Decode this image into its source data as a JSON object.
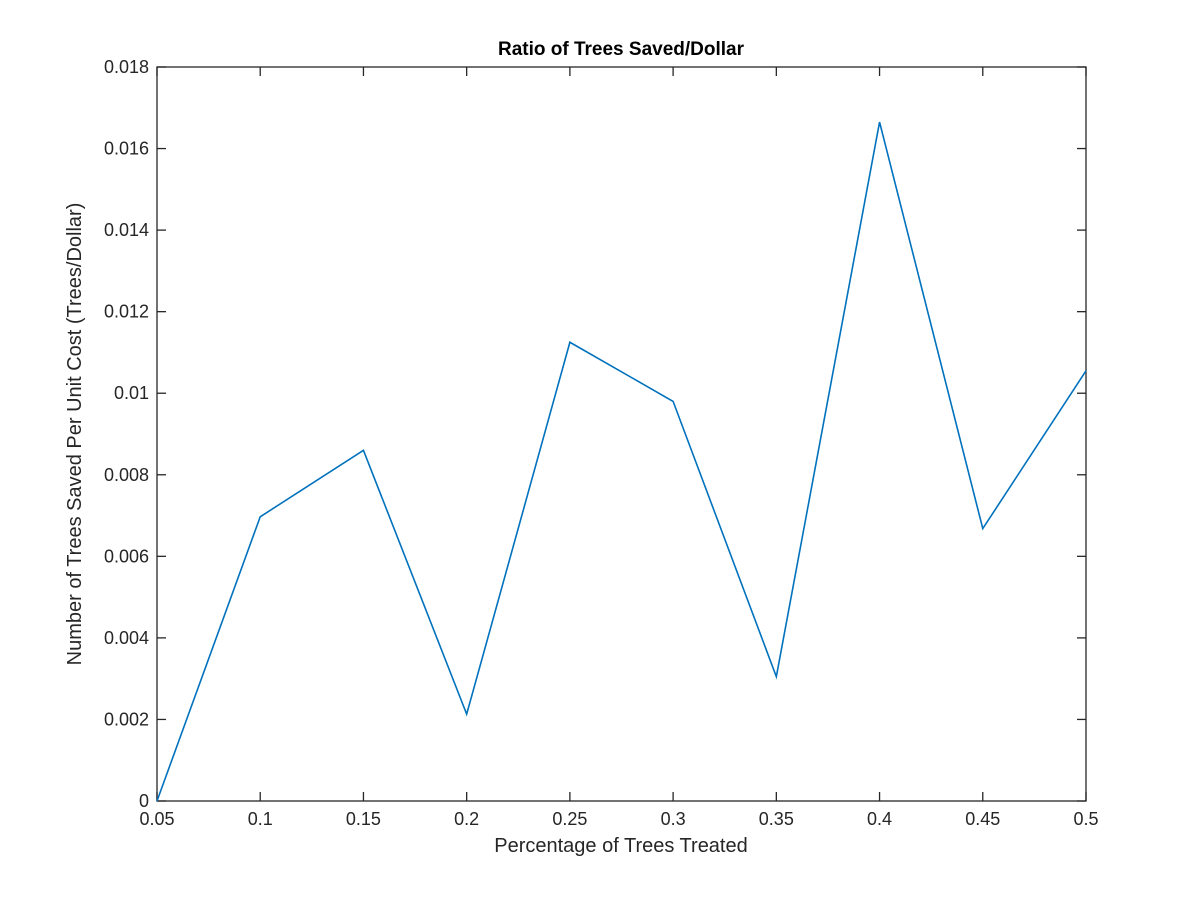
{
  "chart_data": {
    "type": "line",
    "title": "Ratio of Trees Saved/Dollar",
    "xlabel": "Percentage of Trees Treated",
    "ylabel": "Number of Trees Saved Per Unit Cost (Trees/Dollar)",
    "xlim": [
      0.05,
      0.5
    ],
    "ylim": [
      0,
      0.018
    ],
    "xticks": [
      "0.05",
      "0.1",
      "0.15",
      "0.2",
      "0.25",
      "0.3",
      "0.35",
      "0.4",
      "0.45",
      "0.5"
    ],
    "yticks": [
      "0",
      "0.002",
      "0.004",
      "0.006",
      "0.008",
      "0.01",
      "0.012",
      "0.014",
      "0.016",
      "0.018"
    ],
    "grid": false,
    "legend": "none",
    "series": [
      {
        "color": "#0072BD",
        "x": [
          0.05,
          0.1,
          0.15,
          0.2,
          0.25,
          0.3,
          0.35,
          0.4,
          0.45,
          0.5
        ],
        "y": [
          0.0,
          0.00697,
          0.0086,
          0.00213,
          0.01125,
          0.0098,
          0.00305,
          0.01665,
          0.00668,
          0.01055
        ]
      }
    ]
  }
}
